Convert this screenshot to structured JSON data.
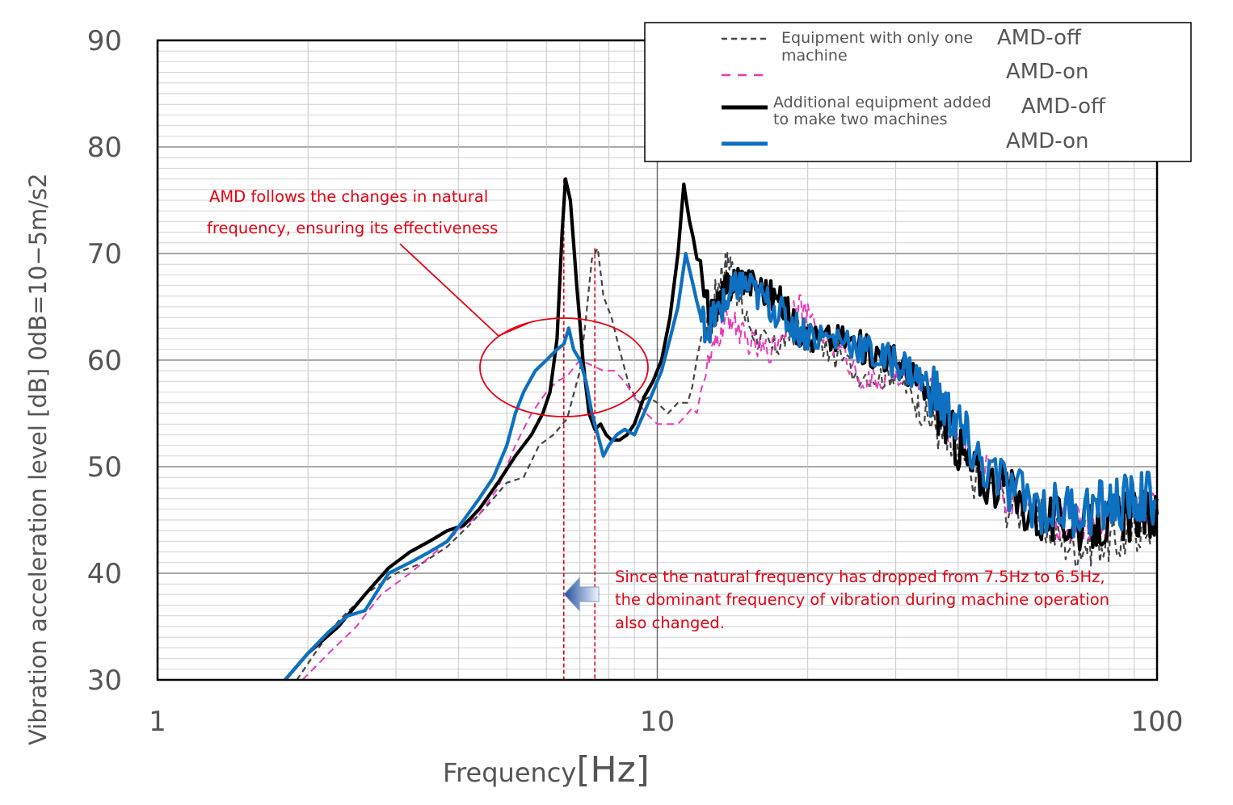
{
  "chart_data": {
    "type": "line",
    "xscale": "log",
    "xlim": [
      1,
      100
    ],
    "ylim": [
      30,
      90
    ],
    "xlabel_main": "Frequency",
    "xlabel_unit": "[Hz]",
    "ylabel": "Vibration acceleration level [dB] 0dB=10−5m/s2",
    "x_ticks": [
      "1",
      "10",
      "100"
    ],
    "y_ticks": [
      "30",
      "40",
      "50",
      "60",
      "70",
      "80",
      "90"
    ],
    "grid": true,
    "legend": {
      "placement": "top-right",
      "group1": "Equipment with only one machine",
      "group2": "Additional equipment added to make two machines"
    },
    "series": [
      {
        "name": "AMD-off",
        "group": "Equipment with only one machine",
        "color": "#444444",
        "style": "dashed",
        "points": [
          [
            1.9,
            30
          ],
          [
            2.1,
            33
          ],
          [
            2.3,
            35.5
          ],
          [
            2.6,
            38
          ],
          [
            3,
            40
          ],
          [
            3.4,
            41
          ],
          [
            3.8,
            42.5
          ],
          [
            4.2,
            44.5
          ],
          [
            4.6,
            46.5
          ],
          [
            5,
            48.5
          ],
          [
            5.4,
            49
          ],
          [
            5.8,
            52
          ],
          [
            6.2,
            53
          ],
          [
            6.6,
            54.5
          ],
          [
            7,
            59
          ],
          [
            7.2,
            64
          ],
          [
            7.4,
            69.5
          ],
          [
            7.6,
            70.5
          ],
          [
            7.8,
            66
          ],
          [
            8.1,
            64
          ],
          [
            8.4,
            61
          ],
          [
            8.8,
            57.5
          ],
          [
            9.2,
            56
          ],
          [
            9.6,
            56.5
          ],
          [
            10,
            56
          ],
          [
            10.5,
            55
          ],
          [
            11,
            56
          ],
          [
            11.5,
            56
          ],
          [
            12,
            59
          ],
          [
            12.5,
            63
          ],
          [
            13,
            66
          ],
          [
            13.5,
            68.5
          ],
          [
            14,
            69.5
          ],
          [
            14.5,
            66
          ],
          [
            15,
            64
          ],
          [
            16,
            62
          ],
          [
            17,
            61
          ],
          [
            18,
            62
          ],
          [
            19,
            63
          ],
          [
            20,
            62
          ],
          [
            22,
            61
          ],
          [
            25,
            59
          ],
          [
            28,
            58.5
          ],
          [
            30,
            59
          ],
          [
            32,
            57
          ],
          [
            34,
            55
          ],
          [
            36,
            54
          ],
          [
            38,
            52
          ],
          [
            40,
            51
          ],
          [
            45,
            48
          ],
          [
            50,
            46.5
          ],
          [
            55,
            45.5
          ],
          [
            60,
            44.5
          ],
          [
            65,
            43
          ],
          [
            70,
            42.5
          ],
          [
            75,
            43
          ],
          [
            80,
            43
          ],
          [
            85,
            43
          ],
          [
            90,
            44
          ],
          [
            95,
            44.5
          ],
          [
            100,
            44.5
          ]
        ]
      },
      {
        "name": "AMD-on",
        "group": "Equipment with only one machine",
        "color": "#e83bb8",
        "style": "dashed",
        "points": [
          [
            1.95,
            30
          ],
          [
            2.2,
            32.5
          ],
          [
            2.5,
            35
          ],
          [
            2.8,
            38
          ],
          [
            3.2,
            40
          ],
          [
            3.6,
            42
          ],
          [
            4,
            44
          ],
          [
            4.4,
            45.5
          ],
          [
            4.8,
            48
          ],
          [
            5.2,
            52
          ],
          [
            5.6,
            55
          ],
          [
            6,
            57
          ],
          [
            6.3,
            58
          ],
          [
            6.6,
            58.5
          ],
          [
            7,
            60
          ],
          [
            7.4,
            59.5
          ],
          [
            7.8,
            59
          ],
          [
            8.2,
            59
          ],
          [
            8.6,
            58
          ],
          [
            9,
            56.5
          ],
          [
            9.5,
            55
          ],
          [
            10,
            54
          ],
          [
            10.5,
            54
          ],
          [
            11,
            54
          ],
          [
            11.5,
            55
          ],
          [
            12,
            56
          ],
          [
            12.5,
            59
          ],
          [
            13,
            61
          ],
          [
            13.5,
            63
          ],
          [
            14,
            64
          ],
          [
            14.5,
            63
          ],
          [
            15,
            62
          ],
          [
            16,
            61
          ],
          [
            17,
            61
          ],
          [
            18,
            63
          ],
          [
            19,
            66
          ],
          [
            20,
            64
          ],
          [
            22,
            62
          ],
          [
            24,
            60
          ],
          [
            26,
            58
          ],
          [
            28,
            58
          ],
          [
            30,
            59
          ],
          [
            33,
            58
          ],
          [
            36,
            56
          ],
          [
            40,
            53
          ],
          [
            45,
            50
          ],
          [
            50,
            47
          ],
          [
            55,
            46
          ],
          [
            60,
            45.5
          ],
          [
            65,
            44.5
          ],
          [
            70,
            44.5
          ],
          [
            75,
            45
          ],
          [
            80,
            45
          ],
          [
            85,
            45.5
          ],
          [
            90,
            45.5
          ],
          [
            95,
            46
          ],
          [
            100,
            46
          ]
        ]
      },
      {
        "name": "AMD-off",
        "group": "Additional equipment added to make two machines",
        "color": "#000000",
        "style": "solid",
        "points": [
          [
            1.8,
            30
          ],
          [
            2,
            32.5
          ],
          [
            2.3,
            35
          ],
          [
            2.6,
            38
          ],
          [
            2.9,
            40.5
          ],
          [
            3.2,
            42
          ],
          [
            3.5,
            43
          ],
          [
            3.8,
            44
          ],
          [
            4.1,
            44.5
          ],
          [
            4.4,
            46
          ],
          [
            4.8,
            48.5
          ],
          [
            5.2,
            51
          ],
          [
            5.6,
            53
          ],
          [
            5.9,
            55
          ],
          [
            6.1,
            57
          ],
          [
            6.3,
            62
          ],
          [
            6.45,
            72
          ],
          [
            6.55,
            77
          ],
          [
            6.7,
            75
          ],
          [
            6.9,
            67
          ],
          [
            7.1,
            60
          ],
          [
            7.3,
            55
          ],
          [
            7.5,
            53.5
          ],
          [
            7.7,
            54
          ],
          [
            7.9,
            53
          ],
          [
            8.1,
            52.5
          ],
          [
            8.4,
            52.5
          ],
          [
            8.7,
            53
          ],
          [
            9,
            54
          ],
          [
            9.4,
            56.5
          ],
          [
            9.8,
            58
          ],
          [
            10.2,
            60
          ],
          [
            10.6,
            64
          ],
          [
            11,
            70
          ],
          [
            11.3,
            76.5
          ],
          [
            11.6,
            73
          ],
          [
            12,
            70
          ],
          [
            12.4,
            66
          ],
          [
            12.8,
            64
          ],
          [
            13.2,
            65
          ],
          [
            13.6,
            66.5
          ],
          [
            14,
            67
          ],
          [
            14.5,
            68
          ],
          [
            15,
            67.5
          ],
          [
            16,
            67
          ],
          [
            17,
            66
          ],
          [
            18,
            65
          ],
          [
            19,
            63
          ],
          [
            20,
            62
          ],
          [
            22,
            62
          ],
          [
            24,
            62
          ],
          [
            26,
            61
          ],
          [
            28,
            60.5
          ],
          [
            30,
            60
          ],
          [
            32,
            59
          ],
          [
            34,
            57
          ],
          [
            36,
            56
          ],
          [
            38,
            54
          ],
          [
            40,
            52
          ],
          [
            42,
            50
          ],
          [
            45,
            49
          ],
          [
            50,
            48
          ],
          [
            55,
            46
          ],
          [
            60,
            45
          ],
          [
            65,
            45
          ],
          [
            70,
            44.5
          ],
          [
            75,
            44.5
          ],
          [
            80,
            45
          ],
          [
            85,
            45
          ],
          [
            90,
            45.5
          ],
          [
            95,
            45.5
          ],
          [
            100,
            45.5
          ]
        ]
      },
      {
        "name": "AMD-on",
        "group": "Additional equipment added to make two machines",
        "color": "#0e70c0",
        "style": "solid",
        "points": [
          [
            1.8,
            30
          ],
          [
            2,
            32.5
          ],
          [
            2.2,
            34.5
          ],
          [
            2.4,
            36
          ],
          [
            2.6,
            36.5
          ],
          [
            2.9,
            40
          ],
          [
            3.2,
            41
          ],
          [
            3.5,
            42
          ],
          [
            3.8,
            43
          ],
          [
            4.1,
            45
          ],
          [
            4.4,
            47
          ],
          [
            4.7,
            49
          ],
          [
            5,
            52
          ],
          [
            5.2,
            55
          ],
          [
            5.4,
            57
          ],
          [
            5.7,
            59
          ],
          [
            6,
            60
          ],
          [
            6.3,
            61
          ],
          [
            6.5,
            61.5
          ],
          [
            6.65,
            63
          ],
          [
            6.8,
            61
          ],
          [
            7,
            60
          ],
          [
            7.2,
            58
          ],
          [
            7.4,
            55
          ],
          [
            7.6,
            53
          ],
          [
            7.8,
            51
          ],
          [
            8,
            52
          ],
          [
            8.3,
            53
          ],
          [
            8.6,
            53.5
          ],
          [
            9,
            53
          ],
          [
            9.4,
            55
          ],
          [
            9.8,
            57
          ],
          [
            10.2,
            59
          ],
          [
            10.6,
            62
          ],
          [
            11,
            65
          ],
          [
            11.4,
            70
          ],
          [
            11.8,
            67
          ],
          [
            12.2,
            64
          ],
          [
            12.6,
            63
          ],
          [
            13,
            64
          ],
          [
            13.5,
            65
          ],
          [
            14,
            66
          ],
          [
            14.5,
            67
          ],
          [
            15,
            67
          ],
          [
            16,
            66
          ],
          [
            17,
            65
          ],
          [
            18,
            64
          ],
          [
            19,
            63
          ],
          [
            20,
            62.5
          ],
          [
            22,
            62
          ],
          [
            24,
            62
          ],
          [
            26,
            61
          ],
          [
            28,
            60
          ],
          [
            30,
            60
          ],
          [
            32,
            59
          ],
          [
            34,
            58
          ],
          [
            36,
            57
          ],
          [
            38,
            55
          ],
          [
            40,
            54
          ],
          [
            42,
            52
          ],
          [
            45,
            50
          ],
          [
            50,
            48
          ],
          [
            55,
            47
          ],
          [
            60,
            46
          ],
          [
            65,
            46
          ],
          [
            70,
            46
          ],
          [
            75,
            46
          ],
          [
            80,
            46.5
          ],
          [
            85,
            46.5
          ],
          [
            90,
            47
          ],
          [
            95,
            47
          ],
          [
            100,
            47
          ]
        ]
      }
    ],
    "markers": [
      {
        "x": 6.5,
        "color": "#e60012"
      },
      {
        "x": 7.5,
        "color": "#e60012"
      }
    ],
    "annotations": {
      "callout_lines": [
        "AMD follows the changes in natural",
        "frequency, ensuring its effectiveness"
      ],
      "note_lines": [
        "Since the natural frequency has dropped from 7.5Hz to 6.5Hz,",
        "the dominant frequency of vibration during machine operation",
        "also changed."
      ]
    }
  }
}
